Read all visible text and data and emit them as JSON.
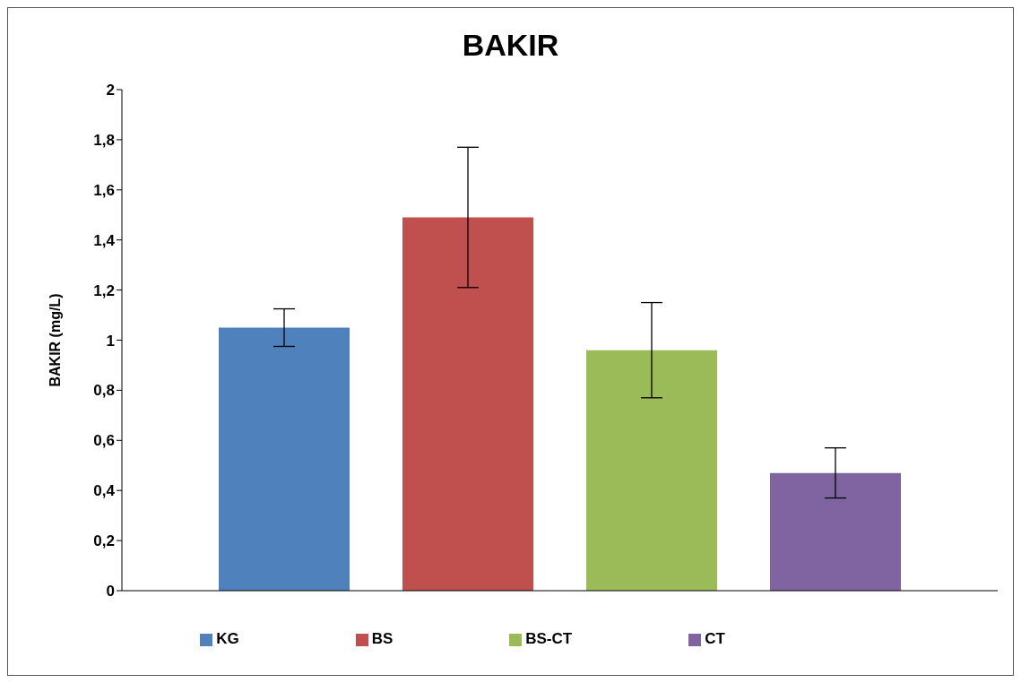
{
  "chart_data": {
    "type": "bar",
    "title": "BAKIR",
    "ylabel": "BAKIR (mg/L)",
    "categories": [
      null
    ],
    "series": [
      {
        "name": "KG",
        "color": "#4f81bd",
        "values": [
          1.05
        ],
        "errors": [
          0.075
        ]
      },
      {
        "name": "BS",
        "color": "#c0504d",
        "values": [
          1.49
        ],
        "errors": [
          0.28
        ]
      },
      {
        "name": "BS-CT",
        "color": "#9bbb59",
        "values": [
          0.96
        ],
        "errors": [
          0.19
        ]
      },
      {
        "name": "CT",
        "color": "#8064a2",
        "values": [
          0.47
        ],
        "errors": [
          0.1
        ]
      }
    ],
    "ylim": [
      0,
      2
    ],
    "yticks": [
      0,
      {
        "value": 0.2,
        "label": "0,2"
      },
      {
        "value": 0.4,
        "label": "0,4"
      },
      {
        "value": 0.6,
        "label": "0,6"
      },
      {
        "value": 0.8,
        "label": "0,8"
      },
      1,
      {
        "value": 1.2,
        "label": "1,2"
      },
      {
        "value": 1.4,
        "label": "1,4"
      },
      {
        "value": 1.6,
        "label": "1,6"
      },
      {
        "value": 1.8,
        "label": "1,8"
      },
      2
    ],
    "legend": "bottom",
    "tick_labels": "y"
  }
}
